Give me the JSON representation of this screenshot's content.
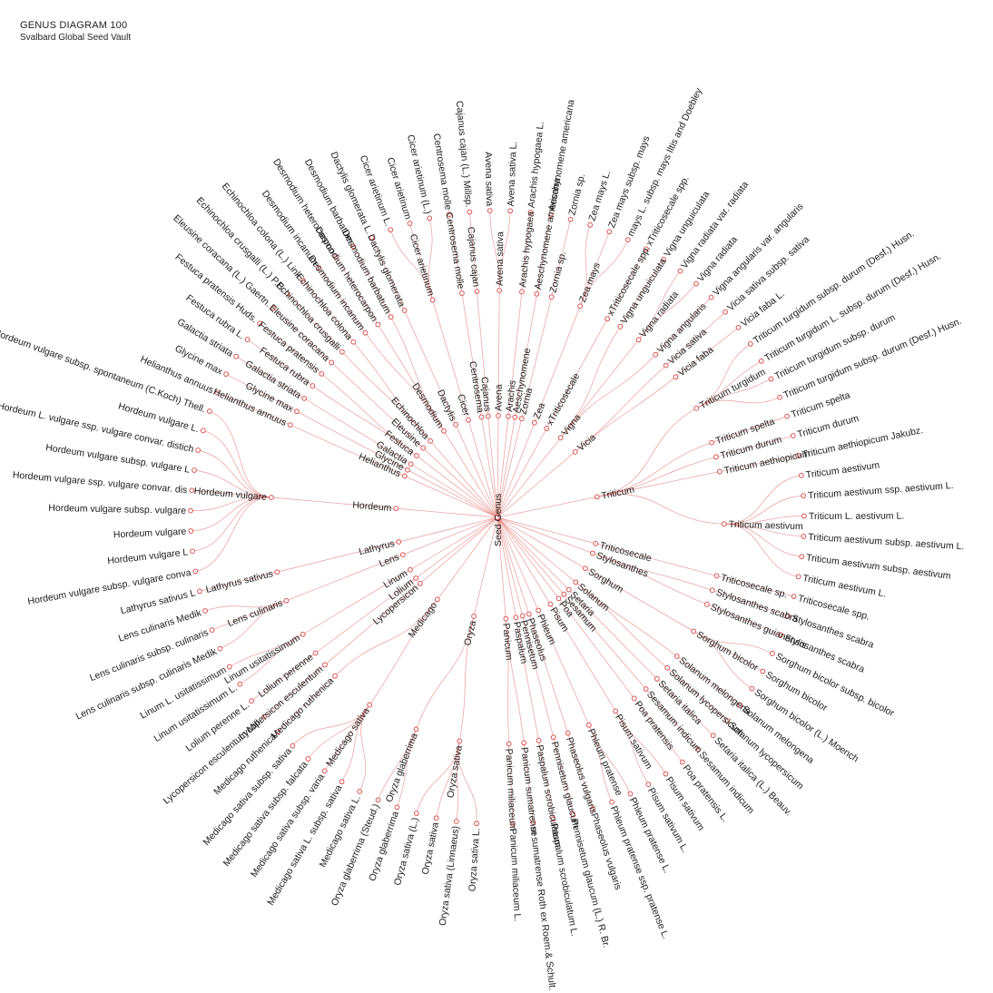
{
  "header": {
    "title": "GENUS DIAGRAM 100",
    "subtitle": "Svalbard Global Seed Vault"
  },
  "root": "Seed Genus",
  "genera": [
    {
      "name": "Oryza",
      "species": [
        {
          "name": "Oryza sativa",
          "accessions": [
            "Oryza sativa L.",
            "Oryza sativa (Linnaeus)",
            "Oryza sativa",
            "Oryza sativa (L.)"
          ]
        },
        {
          "name": "Oryza glaberrima",
          "accessions": [
            "Oryza glaberrima",
            "Oryza glaberrima (Steud.)"
          ]
        }
      ]
    },
    {
      "name": "Medicago",
      "species": [
        {
          "name": "Medicago sativa",
          "accessions": [
            "Medicago sativa L.",
            "Medicago sativa L. subsp. sativa",
            "Medicago sativa subsp. varia",
            "Medicago sativa subsp. falcata",
            "Medicago sativa subsp. sativa"
          ]
        },
        {
          "name": "Medicago ruthenica",
          "accessions": [
            "Medicago ruthenica"
          ]
        }
      ]
    },
    {
      "name": "Lycopersicon",
      "species": [
        {
          "name": "Lycopersicon esculentum",
          "accessions": [
            "Lycopersicon esculentum Mill."
          ]
        }
      ]
    },
    {
      "name": "Lolium",
      "species": [
        {
          "name": "Lolium perenne",
          "accessions": [
            "Lolium perenne L."
          ]
        }
      ]
    },
    {
      "name": "Linum",
      "species": [
        {
          "name": "Linum usitatissimum",
          "accessions": [
            "Linum usitatissimum L.",
            "Linum L. usitatissimum"
          ]
        }
      ]
    },
    {
      "name": "Lens",
      "species": [
        {
          "name": "Lens culinaris",
          "accessions": [
            "Lens culinaris subsp. culinaris Medik",
            "Lens culinaris subsp. culinaris",
            "Lens culinaris Medik"
          ]
        }
      ]
    },
    {
      "name": "Lathyrus",
      "species": [
        {
          "name": "Lathyrus sativus",
          "accessions": [
            "Lathyrus sativus L"
          ]
        }
      ]
    },
    {
      "name": "Hordeum",
      "species": [
        {
          "name": "Hordeum vulgare",
          "accessions": [
            "Hordeum vulgare subsp. vulgare conva",
            "Hordeum vulgare L",
            "Hordeum vulgare",
            "Hordeum vulgare subsp. vulgare",
            "Hordeum vulgare ssp. vulgare convar. dis",
            "Hordeum vulgare subsp. vulgare L",
            "Hordeum L. vulgare ssp. vulgare convar. distich",
            "Hordeum vulgare L.",
            "Hordeum vulgare subsp. spontaneum (C.Koch) Thell."
          ]
        }
      ]
    },
    {
      "name": "Helianthus",
      "species": [
        {
          "name": "Helianthus annuus",
          "accessions": [
            "Helianthus annuus"
          ]
        }
      ]
    },
    {
      "name": "Glycine",
      "species": [
        {
          "name": "Glycine max",
          "accessions": [
            "Glycine max"
          ]
        }
      ]
    },
    {
      "name": "Galactia",
      "species": [
        {
          "name": "Galactia striata",
          "accessions": [
            "Galactia striata"
          ]
        }
      ]
    },
    {
      "name": "Festuca",
      "species": [
        {
          "name": "Festuca rubra",
          "accessions": [
            "Festuca rubra L."
          ]
        },
        {
          "name": "Festuca pratensis",
          "accessions": [
            "Festuca pratensis Huds."
          ]
        }
      ]
    },
    {
      "name": "Eleusine",
      "species": [
        {
          "name": "Eleusine coracana",
          "accessions": [
            "Eleusine coracana (L.) Gaertn."
          ]
        }
      ]
    },
    {
      "name": "Echinochloa",
      "species": [
        {
          "name": "Echinochloa crusgalli",
          "accessions": [
            "Echinochloa crusgalli (L.) P.B."
          ]
        },
        {
          "name": "Echinochloa colona",
          "accessions": [
            "Echinochloa colona (L.) Link"
          ]
        }
      ]
    },
    {
      "name": "Desmodium",
      "species": [
        {
          "name": "Desmodium incanum",
          "accessions": [
            "Desmodium incanum"
          ]
        },
        {
          "name": "Desmodium heterocarpon",
          "accessions": [
            "Desmodium heterocarpon"
          ]
        },
        {
          "name": "Desmodium barbatum",
          "accessions": [
            "Desmodium barbatum"
          ]
        }
      ]
    },
    {
      "name": "Dactylis",
      "species": [
        {
          "name": "Dactylis glomerata",
          "accessions": [
            "Dactylis glomerata L."
          ]
        }
      ]
    },
    {
      "name": "Cicer",
      "species": [
        {
          "name": "Cicer arietinum",
          "accessions": [
            "Cicer arietinum L.",
            "Cicer arietinum",
            "Cicer arietinum (L.)"
          ]
        }
      ]
    },
    {
      "name": "Centrosema",
      "species": [
        {
          "name": "Centrosema molle",
          "accessions": [
            "Centrosema molle"
          ]
        }
      ]
    },
    {
      "name": "Cajanus",
      "species": [
        {
          "name": "Cajanus cajan",
          "accessions": [
            "Cajanus cajan (L.) Millsp."
          ]
        }
      ]
    },
    {
      "name": "Avena",
      "species": [
        {
          "name": "Avena sativa",
          "accessions": [
            "Avena sativa",
            "Avena sativa L."
          ]
        }
      ]
    },
    {
      "name": "Arachis",
      "species": [
        {
          "name": "Arachis hypogaea",
          "accessions": [
            "Arachis hypogaea L."
          ]
        }
      ]
    },
    {
      "name": "Aeschynomene",
      "species": [
        {
          "name": "Aeschynomene americana",
          "accessions": [
            "Aeschynomene americana"
          ]
        }
      ]
    },
    {
      "name": "Zornia",
      "species": [
        {
          "name": "Zornia sp.",
          "accessions": [
            "Zornia sp."
          ]
        }
      ]
    },
    {
      "name": "Zea",
      "species": [
        {
          "name": "Zea mays",
          "accessions": [
            "Zea mays L.",
            "Zea mays subsp. mays",
            "mays L. subsp. mays Iltis and Doebley"
          ]
        }
      ]
    },
    {
      "name": "xTriticosecale",
      "species": [
        {
          "name": "xTriticosecale spp.",
          "accessions": [
            "xTriticosecale spp."
          ]
        }
      ]
    },
    {
      "name": "Vigna",
      "species": [
        {
          "name": "Vigna unguiculata",
          "accessions": [
            "Vigna unguiculata"
          ]
        },
        {
          "name": "Vigna radiata",
          "accessions": [
            "Vigna radiata var. radiata",
            "Vigna radiata"
          ]
        },
        {
          "name": "Vigna angularis",
          "accessions": [
            "Vigna angularis var. angularis"
          ]
        }
      ]
    },
    {
      "name": "Vicia",
      "species": [
        {
          "name": "Vicia sativa",
          "accessions": [
            "Vicia sativa subsp. sativa"
          ]
        },
        {
          "name": "Vicia faba",
          "accessions": [
            "Vicia faba L."
          ]
        }
      ]
    },
    {
      "name": "Triticum",
      "species": [
        {
          "name": "Triticum turgidum",
          "accessions": [
            "Triticum turgidum subsp. durum (Desf.) Husn.",
            "Triticum turgidum L. subsp. durum (Desf.) Husn.",
            "Triticum turgidum subsp. durum",
            "Triticum turgidum subsp. durum (Desf.) Husn."
          ]
        },
        {
          "name": "Triticum spelta",
          "accessions": [
            "Triticum spelta"
          ]
        },
        {
          "name": "Triticum durum",
          "accessions": [
            "Triticum durum"
          ]
        },
        {
          "name": "Triticum aethiopicum",
          "accessions": [
            "Triticum aethiopicum Jakubz."
          ]
        },
        {
          "name": "Triticum aestivum",
          "accessions": [
            "Triticum aestivum",
            "Triticum aestivum ssp. aestivum L.",
            "Triticum L. aestivum L.",
            "Triticum aestivum subsp. aestivum L.",
            "Triticum aestivum subsp. aestivum",
            "Triticum aestivum L."
          ]
        }
      ]
    },
    {
      "name": "Triticosecale",
      "species": [
        {
          "name": "Triticosecale sp.",
          "accessions": [
            "Triticosecale spp."
          ]
        }
      ]
    },
    {
      "name": "Stylosanthes",
      "species": [
        {
          "name": "Stylosanthes scabra",
          "accessions": [
            "Stylosanthes scabra"
          ]
        },
        {
          "name": "Stylosanthes guianensis",
          "accessions": [
            "Stylosanthes scabra"
          ]
        }
      ]
    },
    {
      "name": "Sorghum",
      "species": [
        {
          "name": "Sorghum bicolor",
          "accessions": [
            "Sorghum bicolor subsp. bicolor",
            "Sorghum bicolor",
            "Sorghum bicolor (L.) Moench"
          ]
        }
      ]
    },
    {
      "name": "Solanum",
      "species": [
        {
          "name": "Solanum melongena",
          "accessions": [
            "Solanum melongena"
          ]
        },
        {
          "name": "Solanum lycopersicum",
          "accessions": [
            "Solanum lycopersicum"
          ]
        }
      ]
    },
    {
      "name": "Setaria",
      "species": [
        {
          "name": "Setaria italica",
          "accessions": [
            "Setaria italica (L.) Beauv."
          ]
        }
      ]
    },
    {
      "name": "Sesamum",
      "species": [
        {
          "name": "Sesamum indicum",
          "accessions": [
            "Sesamum indicum"
          ]
        }
      ]
    },
    {
      "name": "Poa",
      "species": [
        {
          "name": "Poa pratensis",
          "accessions": [
            "Poa pratensis L."
          ]
        }
      ]
    },
    {
      "name": "Pisum",
      "species": [
        {
          "name": "Pisum sativum",
          "accessions": [
            "Pisum sativum",
            "Pisum sativum L."
          ]
        }
      ]
    },
    {
      "name": "Phleum",
      "species": [
        {
          "name": "Phleum pratense",
          "accessions": [
            "Phleum pratense L.",
            "Phleum pratense ssp. pratense L."
          ]
        }
      ]
    },
    {
      "name": "Phaseolus",
      "species": [
        {
          "name": "Phaseolus vulgaris",
          "accessions": [
            "Phaseolus vulgaris"
          ]
        }
      ]
    },
    {
      "name": "Pennisetum",
      "species": [
        {
          "name": "Pennisetum glaucum",
          "accessions": [
            "Pennisetum glaucum (L.) R. Br."
          ]
        }
      ]
    },
    {
      "name": "Paspalum",
      "species": [
        {
          "name": "Paspalum scrobiculatum",
          "accessions": [
            "Paspalum scrobiculatum L."
          ]
        }
      ]
    },
    {
      "name": "Panicum",
      "species": [
        {
          "name": "Panicum sumatrense",
          "accessions": [
            "m sumatrense Roth ex Roem.& Schult."
          ]
        },
        {
          "name": "Panicum miliaceum",
          "accessions": [
            "Panicum miliaceum L."
          ]
        }
      ]
    }
  ]
}
